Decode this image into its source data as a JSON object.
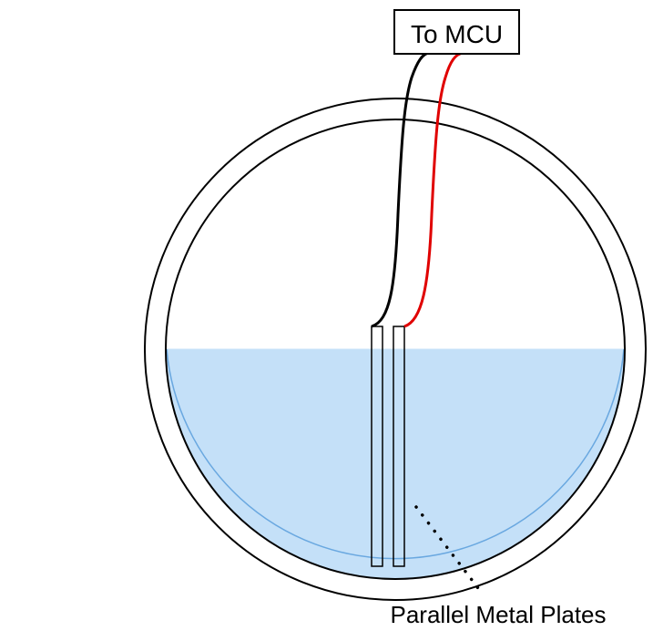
{
  "mcu_box": {
    "label": "To MCU"
  },
  "plates": {
    "label": "Parallel Metal Plates"
  },
  "colors": {
    "outline": "#000000",
    "water_fill": "#c4e0f8",
    "water_edge": "#6aa8e0",
    "wire_ground": "#000000",
    "wire_signal": "#e00000"
  }
}
